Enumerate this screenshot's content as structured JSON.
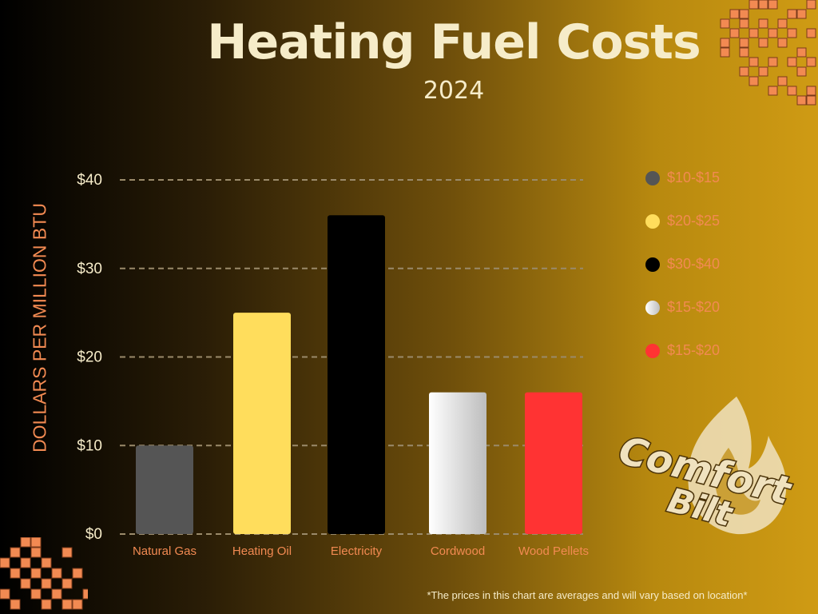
{
  "header": {
    "title": "Heating Fuel Costs",
    "subtitle": "2024"
  },
  "footnote": "*The prices in this chart are  averages and will vary based on location*",
  "logo": {
    "line1": "Comfort",
    "line2": "Bilt",
    "icon": "flame-icon"
  },
  "colors": {
    "tick": "#f6ecc9",
    "category": "#f28a52",
    "grid": "#9a8a6a",
    "accent": "#f28a52",
    "cream": "#f0e2bf"
  },
  "chart_data": {
    "type": "bar",
    "title": "Heating Fuel Costs",
    "subtitle": "2024",
    "ylabel": "DOLLARS PER MILLION BTU",
    "xlabel": "",
    "ylim": [
      0,
      40
    ],
    "yticks": [
      0,
      10,
      20,
      30,
      40
    ],
    "ytick_labels": [
      "$0",
      "$10",
      "$20",
      "$30",
      "$40"
    ],
    "categories": [
      "Natural Gas",
      "Heating Oil",
      "Electricity",
      "Cordwood",
      "Wood Pellets"
    ],
    "values": [
      10,
      25,
      36,
      16,
      16
    ],
    "bar_colors": [
      "#555555",
      "#ffdd5c",
      "#000000",
      "gradient-white-gray",
      "#ff3333"
    ],
    "grid": true,
    "legend": {
      "placement": "right",
      "entries": [
        {
          "label": "$10-$15",
          "color": "#555555"
        },
        {
          "label": "$20-$25",
          "color": "#ffdd5c"
        },
        {
          "label": "$30-$40",
          "color": "#000000"
        },
        {
          "label": "$15-$20",
          "color": "gradient-white-gray"
        },
        {
          "label": "$15-$20",
          "color": "#ff3333"
        }
      ]
    }
  }
}
